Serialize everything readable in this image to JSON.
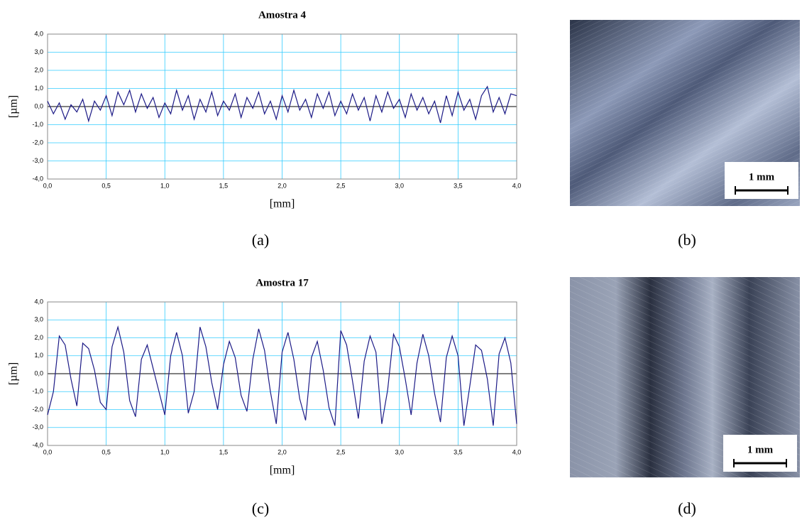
{
  "chart_data": [
    {
      "type": "line",
      "title": "Amostra 4",
      "x_label": "[mm]",
      "y_label": "[µm]",
      "color": "#1c1a86",
      "grid": true,
      "x": [
        0,
        0.05,
        0.1,
        0.15,
        0.2,
        0.25,
        0.3,
        0.35,
        0.4,
        0.45,
        0.5,
        0.55,
        0.6,
        0.65,
        0.7,
        0.75,
        0.8,
        0.85,
        0.9,
        0.95,
        1,
        1.05,
        1.1,
        1.15,
        1.2,
        1.25,
        1.3,
        1.35,
        1.4,
        1.45,
        1.5,
        1.55,
        1.6,
        1.65,
        1.7,
        1.75,
        1.8,
        1.85,
        1.9,
        1.95,
        2,
        2.05,
        2.1,
        2.15,
        2.2,
        2.25,
        2.3,
        2.35,
        2.4,
        2.45,
        2.5,
        2.55,
        2.6,
        2.65,
        2.7,
        2.75,
        2.8,
        2.85,
        2.9,
        2.95,
        3,
        3.05,
        3.1,
        3.15,
        3.2,
        3.25,
        3.3,
        3.35,
        3.4,
        3.45,
        3.5,
        3.55,
        3.6,
        3.65,
        3.7,
        3.75,
        3.8,
        3.85,
        3.9,
        3.95,
        4
      ],
      "values": [
        0.3,
        -0.4,
        0.2,
        -0.7,
        0.1,
        -0.3,
        0.4,
        -0.8,
        0.3,
        -0.2,
        0.6,
        -0.5,
        0.8,
        0.1,
        0.9,
        -0.3,
        0.7,
        -0.1,
        0.5,
        -0.6,
        0.2,
        -0.4,
        0.9,
        -0.2,
        0.6,
        -0.7,
        0.4,
        -0.3,
        0.8,
        -0.5,
        0.3,
        -0.2,
        0.7,
        -0.6,
        0.5,
        -0.1,
        0.8,
        -0.4,
        0.3,
        -0.7,
        0.6,
        -0.3,
        0.9,
        -0.2,
        0.4,
        -0.6,
        0.7,
        -0.1,
        0.8,
        -0.5,
        0.3,
        -0.4,
        0.7,
        -0.2,
        0.5,
        -0.8,
        0.6,
        -0.3,
        0.8,
        -0.1,
        0.4,
        -0.6,
        0.7,
        -0.2,
        0.5,
        -0.4,
        0.3,
        -0.9,
        0.6,
        -0.5,
        0.8,
        -0.2,
        0.4,
        -0.7,
        0.6,
        1.1,
        -0.3,
        0.5,
        -0.4,
        0.7,
        0.6
      ],
      "xlim": [
        0,
        4
      ],
      "ylim": [
        -4,
        4
      ],
      "xticks": [
        {
          "value": 0,
          "label": "0,0"
        },
        {
          "value": 0.5,
          "label": "0,5"
        },
        {
          "value": 1,
          "label": "1,0"
        },
        {
          "value": 1.5,
          "label": "1,5"
        },
        {
          "value": 2,
          "label": "2,0"
        },
        {
          "value": 2.5,
          "label": "2,5"
        },
        {
          "value": 3,
          "label": "3,0"
        },
        {
          "value": 3.5,
          "label": "3,5"
        },
        {
          "value": 4,
          "label": "4,0"
        }
      ],
      "yticks": [
        {
          "value": -4,
          "label": "-4,0"
        },
        {
          "value": -3,
          "label": "-3,0"
        },
        {
          "value": -2,
          "label": "-2,0"
        },
        {
          "value": -1,
          "label": "-1,0"
        },
        {
          "value": 0,
          "label": "0,0"
        },
        {
          "value": 1,
          "label": "1,0"
        },
        {
          "value": 2,
          "label": "2,0"
        },
        {
          "value": 3,
          "label": "3,0"
        },
        {
          "value": 4,
          "label": "4,0"
        }
      ]
    },
    {
      "type": "line",
      "title": "Amostra 17",
      "x_label": "[mm]",
      "y_label": "[µm]",
      "color": "#1c1a86",
      "grid": true,
      "x": [
        0,
        0.05,
        0.1,
        0.15,
        0.2,
        0.25,
        0.3,
        0.35,
        0.4,
        0.45,
        0.5,
        0.55,
        0.6,
        0.65,
        0.7,
        0.75,
        0.8,
        0.85,
        0.9,
        0.95,
        1,
        1.05,
        1.1,
        1.15,
        1.2,
        1.25,
        1.3,
        1.35,
        1.4,
        1.45,
        1.5,
        1.55,
        1.6,
        1.65,
        1.7,
        1.75,
        1.8,
        1.85,
        1.9,
        1.95,
        2,
        2.05,
        2.1,
        2.15,
        2.2,
        2.25,
        2.3,
        2.35,
        2.4,
        2.45,
        2.5,
        2.55,
        2.6,
        2.65,
        2.7,
        2.75,
        2.8,
        2.85,
        2.9,
        2.95,
        3,
        3.05,
        3.1,
        3.15,
        3.2,
        3.25,
        3.3,
        3.35,
        3.4,
        3.45,
        3.5,
        3.55,
        3.6,
        3.65,
        3.7,
        3.75,
        3.8,
        3.85,
        3.9,
        3.95,
        4
      ],
      "values": [
        -2.3,
        -1.0,
        2.1,
        1.6,
        -0.3,
        -1.8,
        1.7,
        1.4,
        0.2,
        -1.6,
        -2.0,
        1.5,
        2.6,
        1.2,
        -1.5,
        -2.4,
        0.8,
        1.6,
        0.3,
        -1.0,
        -2.3,
        1.0,
        2.3,
        1.0,
        -2.2,
        -1.0,
        2.6,
        1.5,
        -0.5,
        -2.0,
        0.5,
        1.8,
        0.9,
        -1.2,
        -2.1,
        0.8,
        2.5,
        1.3,
        -1.0,
        -2.8,
        1.2,
        2.3,
        0.8,
        -1.4,
        -2.6,
        0.9,
        1.8,
        0.2,
        -1.9,
        -2.9,
        2.4,
        1.6,
        -0.4,
        -2.5,
        0.7,
        2.1,
        1.2,
        -2.8,
        -0.9,
        2.2,
        1.5,
        -0.3,
        -2.3,
        0.6,
        2.2,
        1.0,
        -1.1,
        -2.7,
        0.9,
        2.1,
        1.0,
        -2.9,
        -0.7,
        1.6,
        1.3,
        -0.3,
        -2.9,
        1.1,
        2.0,
        0.6,
        -2.8
      ],
      "xlim": [
        0,
        4
      ],
      "ylim": [
        -4,
        4
      ],
      "xticks": [
        {
          "value": 0,
          "label": "0,0"
        },
        {
          "value": 0.5,
          "label": "0,5"
        },
        {
          "value": 1,
          "label": "1,0"
        },
        {
          "value": 1.5,
          "label": "1,5"
        },
        {
          "value": 2,
          "label": "2,0"
        },
        {
          "value": 2.5,
          "label": "2,5"
        },
        {
          "value": 3,
          "label": "3,0"
        },
        {
          "value": 3.5,
          "label": "3,5"
        },
        {
          "value": 4,
          "label": "4,0"
        }
      ],
      "yticks": [
        {
          "value": -4,
          "label": "-4,0"
        },
        {
          "value": -3,
          "label": "-3,0"
        },
        {
          "value": -2,
          "label": "-2,0"
        },
        {
          "value": -1,
          "label": "-1,0"
        },
        {
          "value": 0,
          "label": "0,0"
        },
        {
          "value": 1,
          "label": "1,0"
        },
        {
          "value": 2,
          "label": "2,0"
        },
        {
          "value": 3,
          "label": "3,0"
        },
        {
          "value": 4,
          "label": "4,0"
        }
      ]
    }
  ],
  "panel_labels": [
    "(a)",
    "(b)",
    "(c)",
    "(d)"
  ],
  "scale_bars": [
    "1 mm",
    "1 mm"
  ]
}
